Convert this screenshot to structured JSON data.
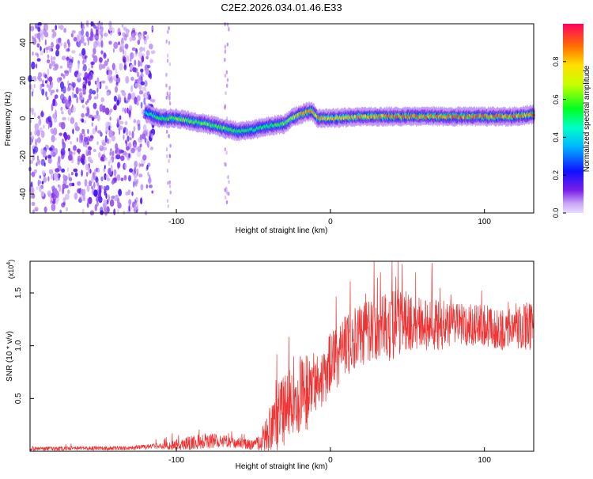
{
  "figure": {
    "title": "C2E2.2026.034.01.46.E33"
  },
  "colors": {
    "snr_line": "#ee3333",
    "axis": "#000000",
    "background": "#ffffff"
  },
  "colorbar": {
    "label": "Normalized spectral amplitude",
    "range": [
      0,
      1
    ],
    "ticks": [
      0.0,
      0.2,
      0.4,
      0.6,
      0.8
    ],
    "tick_labels": [
      "0.0",
      "0.2",
      "0.4",
      "0.6",
      "0.8"
    ]
  },
  "chart_data": [
    {
      "type": "heatmap",
      "title": "C2E2.2026.034.01.46.E33",
      "xlabel": "Height of straight line (km)",
      "ylabel": "Frequency (Hz)",
      "xlim": [
        -195,
        132
      ],
      "ylim": [
        -50,
        50
      ],
      "xticks": [
        -100,
        0,
        100
      ],
      "yticks": [
        -40,
        -20,
        0,
        20,
        40
      ],
      "value_label": "Normalized spectral amplitude",
      "value_range": [
        0,
        1
      ],
      "ridge": {
        "x": [
          -120,
          -110,
          -100,
          -80,
          -70,
          -60,
          -50,
          -40,
          -30,
          -25,
          -20,
          -12,
          -8,
          0,
          20,
          40,
          60,
          80,
          100,
          120,
          132
        ],
        "y": [
          3,
          0,
          0,
          -3,
          -5,
          -7,
          -6,
          -4,
          -3,
          0,
          2,
          4,
          0,
          0,
          1,
          1,
          1,
          1,
          1,
          1,
          2
        ],
        "amplitude": [
          0.45,
          0.55,
          0.62,
          0.62,
          0.6,
          0.55,
          0.5,
          0.55,
          0.6,
          0.7,
          0.85,
          0.9,
          0.85,
          0.8,
          0.85,
          0.9,
          0.9,
          0.9,
          0.9,
          0.9,
          0.9
        ]
      },
      "noise_region_x": [
        -195,
        -115
      ],
      "vertical_streaks_x": [
        -105,
        -67
      ]
    },
    {
      "type": "line",
      "xlabel": "Height of straight line (km)",
      "ylabel": "SNR (10 * v/v)",
      "y_multiplier_label": "(x10",
      "y_multiplier_exponent": "4",
      "y_multiplier_close": ")",
      "xlim": [
        -195,
        132
      ],
      "ylim": [
        0,
        1.8
      ],
      "xticks": [
        -100,
        0,
        100
      ],
      "yticks": [
        0.5,
        1.0,
        1.5
      ],
      "ytick_labels": [
        "0.5",
        "1.0",
        "1.5"
      ],
      "series": [
        {
          "name": "SNR",
          "x": [
            -195,
            -160,
            -130,
            -110,
            -100,
            -90,
            -80,
            -70,
            -60,
            -50,
            -45,
            -40,
            -35,
            -30,
            -25,
            -20,
            -15,
            -10,
            -5,
            0,
            5,
            10,
            20,
            30,
            40,
            50,
            60,
            70,
            80,
            90,
            100,
            110,
            120,
            132
          ],
          "y": [
            0.02,
            0.03,
            0.03,
            0.05,
            0.06,
            0.08,
            0.1,
            0.1,
            0.08,
            0.06,
            0.1,
            0.2,
            0.3,
            0.4,
            0.5,
            0.55,
            0.55,
            0.65,
            0.7,
            0.85,
            0.9,
            1.0,
            1.1,
            1.15,
            1.2,
            1.25,
            1.2,
            1.2,
            1.2,
            1.2,
            1.2,
            1.15,
            1.15,
            1.2
          ],
          "spread": [
            0.02,
            0.02,
            0.02,
            0.03,
            0.05,
            0.07,
            0.08,
            0.06,
            0.05,
            0.05,
            0.1,
            0.2,
            0.3,
            0.35,
            0.4,
            0.4,
            0.35,
            0.3,
            0.3,
            0.3,
            0.3,
            0.3,
            0.3,
            0.3,
            0.35,
            0.3,
            0.25,
            0.25,
            0.2,
            0.2,
            0.2,
            0.2,
            0.2,
            0.25
          ]
        }
      ]
    }
  ]
}
